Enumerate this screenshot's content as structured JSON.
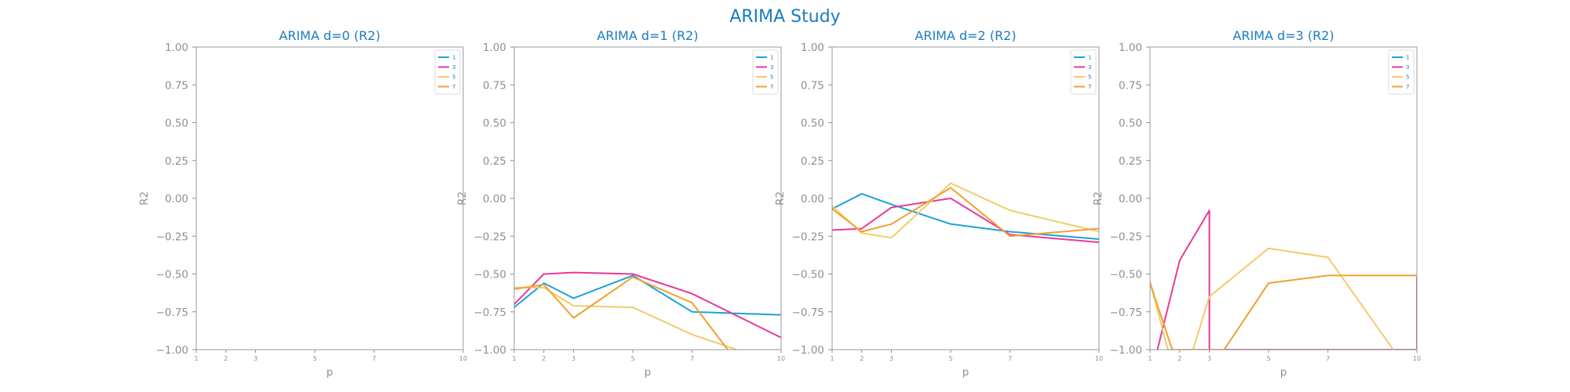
{
  "chart_data": {
    "suptitle": "ARIMA Study",
    "colors": {
      "1": "#1aa3d9",
      "3": "#e8399a",
      "5": "#f0cc6a",
      "7": "#f0a030"
    },
    "panels": [
      {
        "type": "line",
        "title": "ARIMA d=0 (R2)",
        "xlabel": "p",
        "ylabel": "R2",
        "xlim": [
          1,
          10
        ],
        "ylim": [
          -1,
          1
        ],
        "xticks": [
          1,
          2,
          3,
          5,
          7,
          10
        ],
        "yticks": [
          "1.00",
          "0.75",
          "0.50",
          "0.25",
          "0.00",
          "−0.25",
          "−0.50",
          "−0.75",
          "−1.00"
        ],
        "legend_position": "top-right",
        "series": [
          {
            "name": "1",
            "x": [],
            "y": []
          },
          {
            "name": "3",
            "x": [],
            "y": []
          },
          {
            "name": "5",
            "x": [],
            "y": []
          },
          {
            "name": "7",
            "x": [],
            "y": []
          }
        ]
      },
      {
        "type": "line",
        "title": "ARIMA d=1 (R2)",
        "xlabel": "p",
        "ylabel": "R2",
        "xlim": [
          1,
          10
        ],
        "ylim": [
          -1,
          1
        ],
        "xticks": [
          1,
          2,
          3,
          5,
          7,
          10
        ],
        "yticks": [
          "1.00",
          "0.75",
          "0.50",
          "0.25",
          "0.00",
          "−0.25",
          "−0.50",
          "−0.75",
          "−1.00"
        ],
        "legend_position": "top-right",
        "series": [
          {
            "name": "1",
            "x": [
              1,
              2,
              3,
              5,
              7,
              10
            ],
            "y": [
              -0.72,
              -0.56,
              -0.66,
              -0.51,
              -0.75,
              -0.77
            ]
          },
          {
            "name": "3",
            "x": [
              1,
              2,
              3,
              5,
              7,
              10
            ],
            "y": [
              -0.7,
              -0.5,
              -0.49,
              -0.5,
              -0.63,
              -0.92
            ]
          },
          {
            "name": "5",
            "x": [
              1,
              2,
              3,
              5,
              7,
              8.5
            ],
            "y": [
              -0.59,
              -0.59,
              -0.71,
              -0.72,
              -0.9,
              -1.0
            ]
          },
          {
            "name": "7",
            "x": [
              1,
              2,
              3,
              5,
              7,
              8.2
            ],
            "y": [
              -0.6,
              -0.57,
              -0.79,
              -0.52,
              -0.69,
              -1.0
            ]
          }
        ]
      },
      {
        "type": "line",
        "title": "ARIMA d=2 (R2)",
        "xlabel": "p",
        "ylabel": "R2",
        "xlim": [
          1,
          10
        ],
        "ylim": [
          -1,
          1
        ],
        "xticks": [
          1,
          2,
          3,
          5,
          7,
          10
        ],
        "yticks": [
          "1.00",
          "0.75",
          "0.50",
          "0.25",
          "0.00",
          "−0.25",
          "−0.50",
          "−0.75",
          "−1.00"
        ],
        "legend_position": "top-right",
        "series": [
          {
            "name": "1",
            "x": [
              1,
              2,
              3,
              5,
              7,
              10
            ],
            "y": [
              -0.07,
              0.03,
              -0.04,
              -0.17,
              -0.22,
              -0.27
            ]
          },
          {
            "name": "3",
            "x": [
              1,
              2,
              3,
              5,
              7,
              10
            ],
            "y": [
              -0.21,
              -0.2,
              -0.06,
              -0.0,
              -0.24,
              -0.29
            ]
          },
          {
            "name": "5",
            "x": [
              1,
              2,
              3,
              5,
              7,
              10
            ],
            "y": [
              -0.05,
              -0.23,
              -0.26,
              0.1,
              -0.08,
              -0.22
            ]
          },
          {
            "name": "7",
            "x": [
              1,
              2,
              3,
              5,
              7,
              10
            ],
            "y": [
              -0.07,
              -0.22,
              -0.17,
              0.07,
              -0.25,
              -0.2
            ]
          }
        ]
      },
      {
        "type": "line",
        "title": "ARIMA d=3 (R2)",
        "xlabel": "p",
        "ylabel": "R2",
        "xlim": [
          1,
          10
        ],
        "ylim": [
          -1,
          1
        ],
        "xticks": [
          1,
          2,
          3,
          5,
          7,
          10
        ],
        "yticks": [
          "1.00",
          "0.75",
          "0.50",
          "0.25",
          "0.00",
          "−0.25",
          "−0.50",
          "−0.75",
          "−1.00"
        ],
        "legend_position": "top-right",
        "series": [
          {
            "name": "1",
            "x": [],
            "y": []
          },
          {
            "name": "3",
            "x": [
              1.25,
              2,
              3,
              3,
              10,
              10
            ],
            "y": [
              -1.0,
              -0.41,
              -0.08,
              -1.0,
              -1.0,
              -0.52
            ]
          },
          {
            "name": "5",
            "x": [
              1,
              1.6,
              2.45,
              3,
              5,
              7,
              9.2
            ],
            "y": [
              -0.55,
              -1.0,
              -1.0,
              -0.65,
              -0.33,
              -0.39,
              -1.0
            ]
          },
          {
            "name": "7",
            "x": [
              1,
              1.75,
              3.5,
              5,
              7,
              10
            ],
            "y": [
              -0.56,
              -1.0,
              -1.0,
              -0.56,
              -0.51,
              -0.51
            ]
          }
        ]
      }
    ]
  }
}
